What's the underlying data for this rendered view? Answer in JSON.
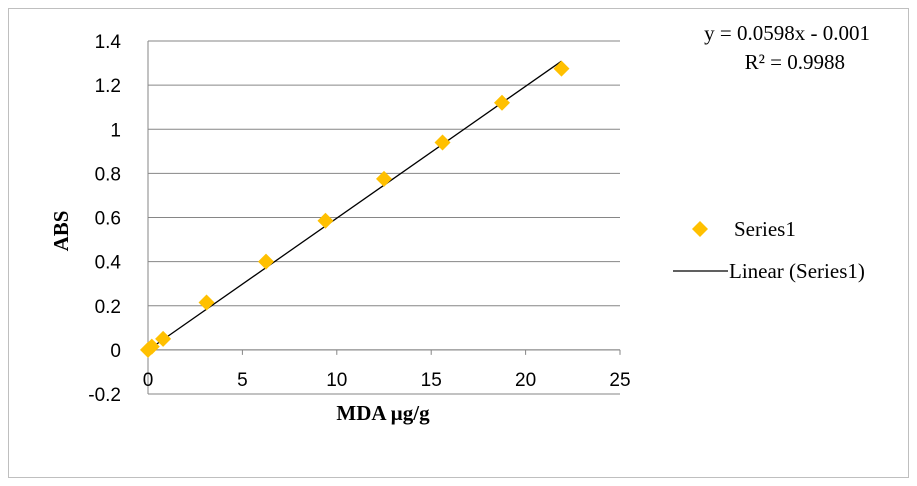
{
  "chart_data": {
    "type": "scatter",
    "title": "",
    "xlabel": "MDA µg/g",
    "ylabel": "ABS",
    "xlim": [
      0,
      25
    ],
    "ylim": [
      -0.2,
      1.4
    ],
    "x_ticks": [
      0,
      5,
      10,
      15,
      20,
      25
    ],
    "y_ticks": [
      -0.2,
      0,
      0.2,
      0.4,
      0.6,
      0.8,
      1,
      1.2,
      1.4
    ],
    "x_tick_labels": [
      "0",
      "5",
      "10",
      "15",
      "20",
      "25"
    ],
    "y_tick_labels": [
      "-0.2",
      "0",
      "0.2",
      "0.4",
      "0.6",
      "0.8",
      "1",
      "1.2",
      "1.4"
    ],
    "grid": "horizontal",
    "legend_position": "right",
    "series": [
      {
        "name": "Series1",
        "marker": "diamond",
        "color": "#FFC000",
        "x": [
          0,
          0.2,
          0.8,
          3.1,
          6.25,
          9.4,
          12.5,
          15.6,
          18.75,
          21.9
        ],
        "y": [
          0,
          0.015,
          0.05,
          0.215,
          0.4,
          0.585,
          0.775,
          0.94,
          1.12,
          1.275
        ]
      }
    ],
    "trendline": {
      "name": "Linear (Series1)",
      "type": "linear",
      "slope": 0.0598,
      "intercept": -0.001,
      "x_range": [
        0,
        21.9
      ],
      "color": "#000000",
      "equation": "y = 0.0598x - 0.001",
      "r_squared": "R² = 0.9988"
    },
    "legend": [
      {
        "label": "Series1",
        "kind": "marker"
      },
      {
        "label": "Linear (Series1)",
        "kind": "line"
      }
    ]
  }
}
